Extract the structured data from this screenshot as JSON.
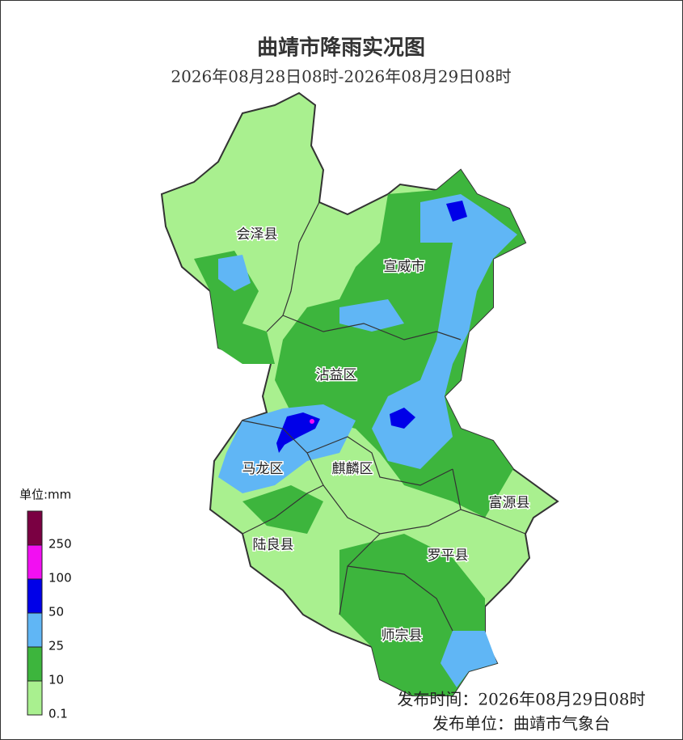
{
  "title": "曲靖市降雨实况图",
  "subtitle": "2026年08月28日08时-2026年08月29日08时",
  "regions": [
    "会泽县",
    "宣威市",
    "沾益区",
    "马龙区",
    "麒麟区",
    "富源县",
    "陆良县",
    "罗平县",
    "师宗县"
  ],
  "legend": {
    "unit": "单位:mm",
    "levels": [
      {
        "value": 0.1,
        "color": "#a9f08f"
      },
      {
        "value": 10,
        "color": "#3db53d"
      },
      {
        "value": 25,
        "color": "#60b6f5"
      },
      {
        "value": 50,
        "color": "#0000e8"
      },
      {
        "value": 100,
        "color": "#f20ff2"
      },
      {
        "value": 250,
        "color": "#7a0042"
      }
    ]
  },
  "footer": {
    "time": "发布时间：2026年08月29日08时",
    "unit": "发布单位：曲靖市气象台"
  }
}
